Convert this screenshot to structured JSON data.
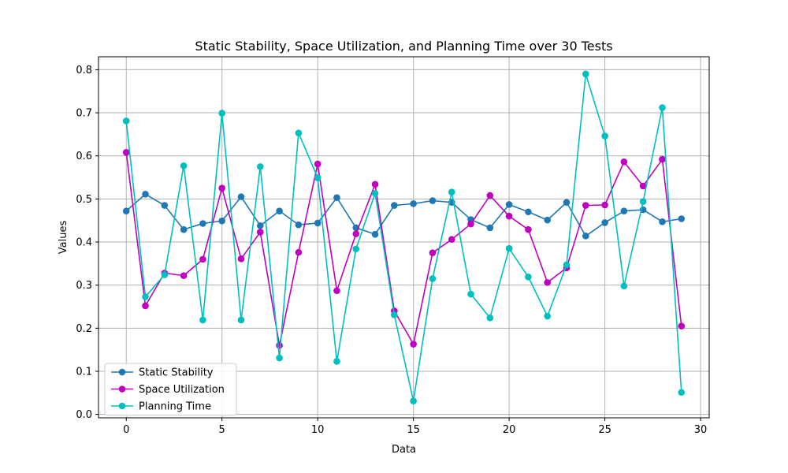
{
  "chart_data": {
    "type": "line",
    "title": "Static Stability, Space Utilization, and Planning Time over 30 Tests",
    "xlabel": "Data",
    "ylabel": "Values",
    "xlim": [
      -1.45,
      30.45
    ],
    "ylim": [
      -0.008,
      0.83
    ],
    "xticks": [
      0,
      5,
      10,
      15,
      20,
      25,
      30
    ],
    "yticks": [
      0.0,
      0.1,
      0.2,
      0.3,
      0.4,
      0.5,
      0.6,
      0.7,
      0.8
    ],
    "grid": true,
    "legend_position": "lower-left",
    "x": [
      0,
      1,
      2,
      3,
      4,
      5,
      6,
      7,
      8,
      9,
      10,
      11,
      12,
      13,
      14,
      15,
      16,
      17,
      18,
      19,
      20,
      21,
      22,
      23,
      24,
      25,
      26,
      27,
      28,
      29
    ],
    "series": [
      {
        "name": "Static Stability",
        "color": "#1f77b4",
        "values": [
          0.472,
          0.511,
          0.485,
          0.429,
          0.443,
          0.449,
          0.505,
          0.438,
          0.472,
          0.44,
          0.444,
          0.503,
          0.433,
          0.418,
          0.485,
          0.489,
          0.496,
          0.492,
          0.452,
          0.433,
          0.487,
          0.47,
          0.451,
          0.492,
          0.414,
          0.445,
          0.472,
          0.475,
          0.447,
          0.454
        ]
      },
      {
        "name": "Space Utilization",
        "color": "#bf00bf",
        "values": [
          0.608,
          0.252,
          0.328,
          0.322,
          0.36,
          0.525,
          0.361,
          0.423,
          0.16,
          0.376,
          0.581,
          0.287,
          0.419,
          0.534,
          0.24,
          0.163,
          0.375,
          0.406,
          0.442,
          0.508,
          0.46,
          0.429,
          0.306,
          0.34,
          0.485,
          0.486,
          0.586,
          0.53,
          0.592,
          0.205
        ]
      },
      {
        "name": "Planning Time",
        "color": "#00bfbf",
        "values": [
          0.681,
          0.273,
          0.324,
          0.577,
          0.219,
          0.699,
          0.219,
          0.575,
          0.131,
          0.653,
          0.549,
          0.123,
          0.384,
          0.513,
          0.231,
          0.031,
          0.315,
          0.516,
          0.279,
          0.224,
          0.385,
          0.319,
          0.228,
          0.347,
          0.79,
          0.646,
          0.298,
          0.494,
          0.712,
          0.051
        ]
      }
    ]
  }
}
